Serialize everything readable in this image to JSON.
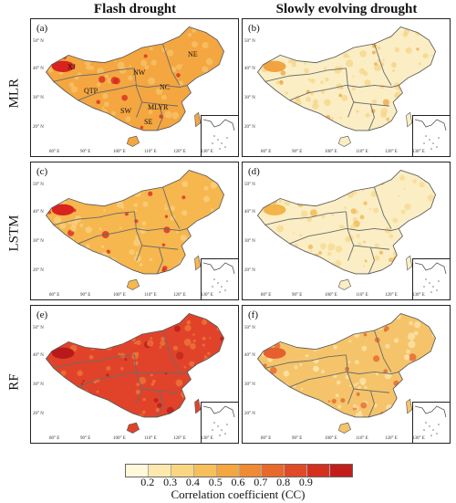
{
  "columns": [
    "Flash drought",
    "Slowly evolving drought"
  ],
  "rows": [
    "MLR",
    "LSTM",
    "RF"
  ],
  "panels": [
    {
      "letter": "(a)",
      "fill": "#f4a640",
      "hot": "#d8231f",
      "speck": "#f7c46a"
    },
    {
      "letter": "(b)",
      "fill": "#fbeec4",
      "hot": "#f0a340",
      "speck": "#f6d488"
    },
    {
      "letter": "(c)",
      "fill": "#f6b74e",
      "hot": "#d8231f",
      "speck": "#f9d184"
    },
    {
      "letter": "(d)",
      "fill": "#fbeec4",
      "hot": "#f3b44c",
      "speck": "#f7d890"
    },
    {
      "letter": "(e)",
      "fill": "#e0432a",
      "hot": "#b81a1a",
      "speck": "#ee7a3a"
    },
    {
      "letter": "(f)",
      "fill": "#f5c46a",
      "hot": "#e5602e",
      "speck": "#fbe7b0"
    }
  ],
  "region_labels": [
    "XJ",
    "NW",
    "NE",
    "QTP",
    "NC",
    "SW",
    "MLYR",
    "SE"
  ],
  "lat_labels": [
    "50° N",
    "40° N",
    "30° N",
    "20° N"
  ],
  "lon_labels": [
    "80° E",
    "90° E",
    "100° E",
    "110° E",
    "120° E",
    "130° E"
  ],
  "colorbar": {
    "colors": [
      "#fff8da",
      "#fde9ac",
      "#fbd682",
      "#f7bf59",
      "#f4a640",
      "#ef8a35",
      "#e8692c",
      "#e04a27",
      "#d4301f",
      "#c21f1c"
    ],
    "ticks": [
      "0.2",
      "0.3",
      "0.4",
      "0.5",
      "0.6",
      "0.7",
      "0.8",
      "0.9"
    ],
    "title": "Correlation coefficient (CC)"
  }
}
